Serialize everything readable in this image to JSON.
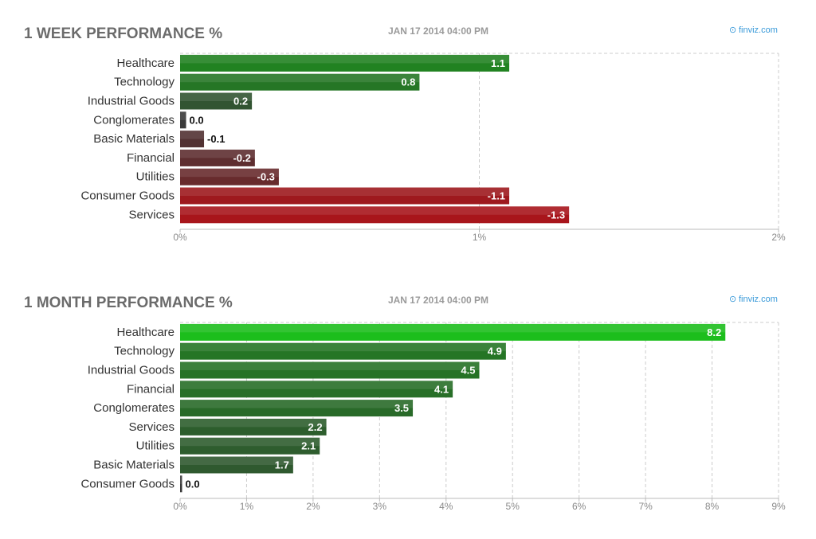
{
  "chart_data": [
    {
      "type": "bar",
      "orientation": "horizontal",
      "title": "1 WEEK PERFORMANCE %",
      "timestamp": "JAN 17 2014 04:00 PM",
      "source": "finviz.com",
      "categories": [
        "Healthcare",
        "Technology",
        "Industrial Goods",
        "Conglomerates",
        "Basic Materials",
        "Financial",
        "Utilities",
        "Consumer Goods",
        "Services"
      ],
      "values": [
        1.1,
        0.8,
        0.2,
        0.0,
        -0.1,
        -0.2,
        -0.3,
        -1.1,
        -1.3
      ],
      "value_labels": [
        "1.1",
        "0.8",
        "0.2",
        "0.0",
        "-0.1",
        "-0.2",
        "-0.3",
        "-1.1",
        "-1.3"
      ],
      "bar_lengths": [
        1.1,
        0.8,
        0.24,
        0.02,
        0.08,
        0.25,
        0.33,
        1.1,
        1.3
      ],
      "xlim": [
        0,
        2
      ],
      "ticks": [
        0,
        1,
        2
      ],
      "tick_labels": [
        "0%",
        "1%",
        "2%"
      ],
      "grid": true,
      "colors": {
        "positive": "#1e8a1e",
        "negative": "#a8151b",
        "neutral": "#3a3a3a"
      }
    },
    {
      "type": "bar",
      "orientation": "horizontal",
      "title": "1 MONTH PERFORMANCE %",
      "timestamp": "JAN 17 2014 04:00 PM",
      "source": "finviz.com",
      "categories": [
        "Healthcare",
        "Technology",
        "Industrial Goods",
        "Financial",
        "Conglomerates",
        "Services",
        "Utilities",
        "Basic Materials",
        "Consumer Goods"
      ],
      "values": [
        8.2,
        4.9,
        4.5,
        4.1,
        3.5,
        2.2,
        2.1,
        1.7,
        0.0
      ],
      "value_labels": [
        "8.2",
        "4.9",
        "4.5",
        "4.1",
        "3.5",
        "2.2",
        "2.1",
        "1.7",
        "0.0"
      ],
      "bar_lengths": [
        8.2,
        4.9,
        4.5,
        4.1,
        3.5,
        2.2,
        2.1,
        1.7,
        0.03
      ],
      "xlim": [
        0,
        9
      ],
      "ticks": [
        0,
        1,
        2,
        3,
        4,
        5,
        6,
        7,
        8,
        9
      ],
      "tick_labels": [
        "0%",
        "1%",
        "2%",
        "3%",
        "4%",
        "5%",
        "6%",
        "7%",
        "8%",
        "9%"
      ],
      "grid": true,
      "colors": {
        "positive": "#1e8a1e",
        "negative": "#a8151b",
        "neutral": "#3a3a3a"
      }
    }
  ]
}
